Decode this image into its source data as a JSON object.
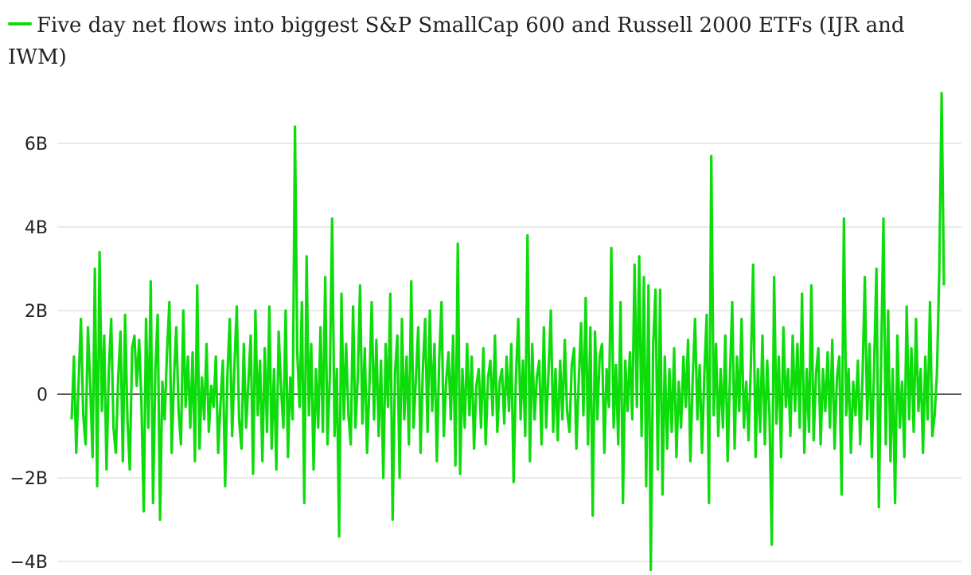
{
  "chart_data": {
    "type": "line",
    "title": "",
    "xlabel": "",
    "ylabel": "",
    "unit": "B",
    "ylim": [
      -4.2,
      7.2
    ],
    "y_ticks": [
      6,
      4,
      2,
      0,
      -2,
      -4
    ],
    "y_tick_labels": [
      "6B",
      "4B",
      "2B",
      "0",
      "−2B",
      "−4B"
    ],
    "grid": true,
    "legend": "top-left",
    "series": [
      {
        "name": "Five day net flows into biggest S&P SmallCap 600 and Russell 2000 ETFs (IJR and IWM)",
        "color": "#0ddc0b",
        "values": [
          -0.6,
          0.9,
          -1.4,
          0.3,
          1.8,
          -0.5,
          -1.2,
          1.6,
          0.2,
          -1.5,
          3.0,
          -2.2,
          3.4,
          -0.4,
          1.4,
          -1.8,
          0.6,
          1.8,
          -0.8,
          -1.4,
          0.4,
          1.5,
          -1.6,
          1.9,
          -0.6,
          -1.8,
          1.1,
          1.4,
          0.2,
          1.3,
          -0.2,
          -2.8,
          1.8,
          -0.8,
          2.7,
          -2.6,
          0.6,
          1.9,
          -3.0,
          0.3,
          -0.6,
          1.0,
          2.2,
          -1.4,
          0.4,
          1.6,
          -0.4,
          -1.2,
          2.0,
          -0.3,
          0.9,
          -0.8,
          1.0,
          -1.6,
          2.6,
          -1.3,
          0.4,
          -0.6,
          1.2,
          -0.9,
          0.2,
          -0.3,
          0.9,
          -1.4,
          -0.2,
          0.8,
          -2.2,
          0.5,
          1.8,
          -1.0,
          0.7,
          2.1,
          -0.6,
          -1.3,
          1.2,
          -0.8,
          0.3,
          1.4,
          -1.9,
          2.0,
          -0.5,
          0.8,
          -1.6,
          1.1,
          -0.9,
          2.1,
          -1.3,
          0.6,
          -1.8,
          1.5,
          0.2,
          -0.8,
          2.0,
          -1.5,
          0.4,
          -0.6,
          6.4,
          1.0,
          -0.3,
          2.2,
          -2.6,
          3.3,
          -0.5,
          1.2,
          -1.8,
          0.6,
          -0.8,
          1.6,
          -0.9,
          2.8,
          -1.2,
          0.4,
          4.2,
          -1.0,
          0.6,
          -3.4,
          2.4,
          -0.6,
          1.2,
          -0.5,
          -1.2,
          2.1,
          -0.8,
          0.4,
          2.6,
          -0.7,
          1.1,
          -1.4,
          0.2,
          2.2,
          -0.6,
          1.3,
          -1.0,
          0.8,
          -2.0,
          1.2,
          -0.3,
          2.4,
          -3.0,
          0.5,
          1.4,
          -2.0,
          1.8,
          -0.6,
          0.9,
          -1.2,
          2.7,
          -0.8,
          0.4,
          1.6,
          -1.4,
          0.6,
          1.8,
          -0.9,
          2.0,
          -0.4,
          1.2,
          -1.6,
          0.8,
          2.2,
          -1.0,
          0.3,
          1.0,
          -0.6,
          1.4,
          -1.7,
          3.6,
          -1.9,
          0.6,
          -0.8,
          1.2,
          -0.5,
          0.9,
          -1.3,
          0.2,
          0.6,
          -0.8,
          1.1,
          -1.2,
          0.4,
          0.8,
          -0.5,
          1.4,
          -0.9,
          0.3,
          0.6,
          -0.7,
          0.9,
          -0.4,
          1.2,
          -2.1,
          0.4,
          1.8,
          -0.6,
          0.8,
          -1.0,
          3.8,
          -1.6,
          1.2,
          -0.6,
          0.4,
          0.8,
          -1.2,
          1.6,
          -0.8,
          0.5,
          2.0,
          -0.9,
          0.6,
          -1.1,
          0.8,
          -0.6,
          1.3,
          -0.4,
          -0.9,
          0.7,
          1.1,
          -1.3,
          0.3,
          1.7,
          -0.5,
          2.3,
          -1.2,
          1.6,
          -2.9,
          1.5,
          -0.6,
          0.9,
          1.2,
          -1.4,
          0.6,
          -0.3,
          3.5,
          -0.8,
          0.7,
          -1.2,
          2.2,
          -2.6,
          0.8,
          -0.4,
          1.0,
          -0.6,
          3.1,
          -0.3,
          3.3,
          -1.0,
          2.8,
          -2.2,
          2.6,
          -4.2,
          1.2,
          2.5,
          -1.8,
          2.5,
          -2.4,
          0.9,
          -1.3,
          0.6,
          -0.9,
          1.1,
          -1.5,
          0.3,
          -0.8,
          0.9,
          -0.3,
          1.3,
          -1.6,
          0.4,
          1.8,
          -0.6,
          0.7,
          -1.4,
          0.5,
          1.9,
          -2.6,
          5.7,
          -0.5,
          1.2,
          -1.0,
          0.6,
          -0.8,
          1.4,
          -1.6,
          0.4,
          2.2,
          -1.3,
          0.9,
          -0.4,
          1.8,
          -0.8,
          0.3,
          -1.1,
          0.7,
          3.1,
          -1.5,
          0.6,
          -0.9,
          1.4,
          -1.2,
          0.8,
          -0.5,
          -3.6,
          2.8,
          -0.7,
          0.9,
          -1.5,
          1.6,
          -0.3,
          0.6,
          -1.0,
          1.4,
          -0.4,
          1.2,
          -0.8,
          2.4,
          -1.4,
          0.6,
          -0.9,
          2.6,
          -1.1,
          0.5,
          1.1,
          -1.2,
          0.6,
          -0.4,
          1.0,
          -0.8,
          1.3,
          -1.3,
          0.4,
          0.9,
          -2.4,
          4.2,
          -0.5,
          0.6,
          -1.4,
          0.3,
          -0.5,
          0.8,
          -1.2,
          0.4,
          2.8,
          -0.6,
          1.2,
          -1.5,
          0.7,
          3.0,
          -2.7,
          0.8,
          4.2,
          -1.2,
          2.0,
          -1.6,
          0.6,
          -2.6,
          1.4,
          -0.8,
          0.3,
          -1.5,
          2.1,
          -0.6,
          1.1,
          -0.9,
          1.8,
          -0.4,
          0.6,
          -1.4,
          0.9,
          -0.6,
          2.2,
          -1.0,
          -0.5,
          0.5,
          3.0,
          7.2,
          2.6
        ]
      }
    ]
  }
}
